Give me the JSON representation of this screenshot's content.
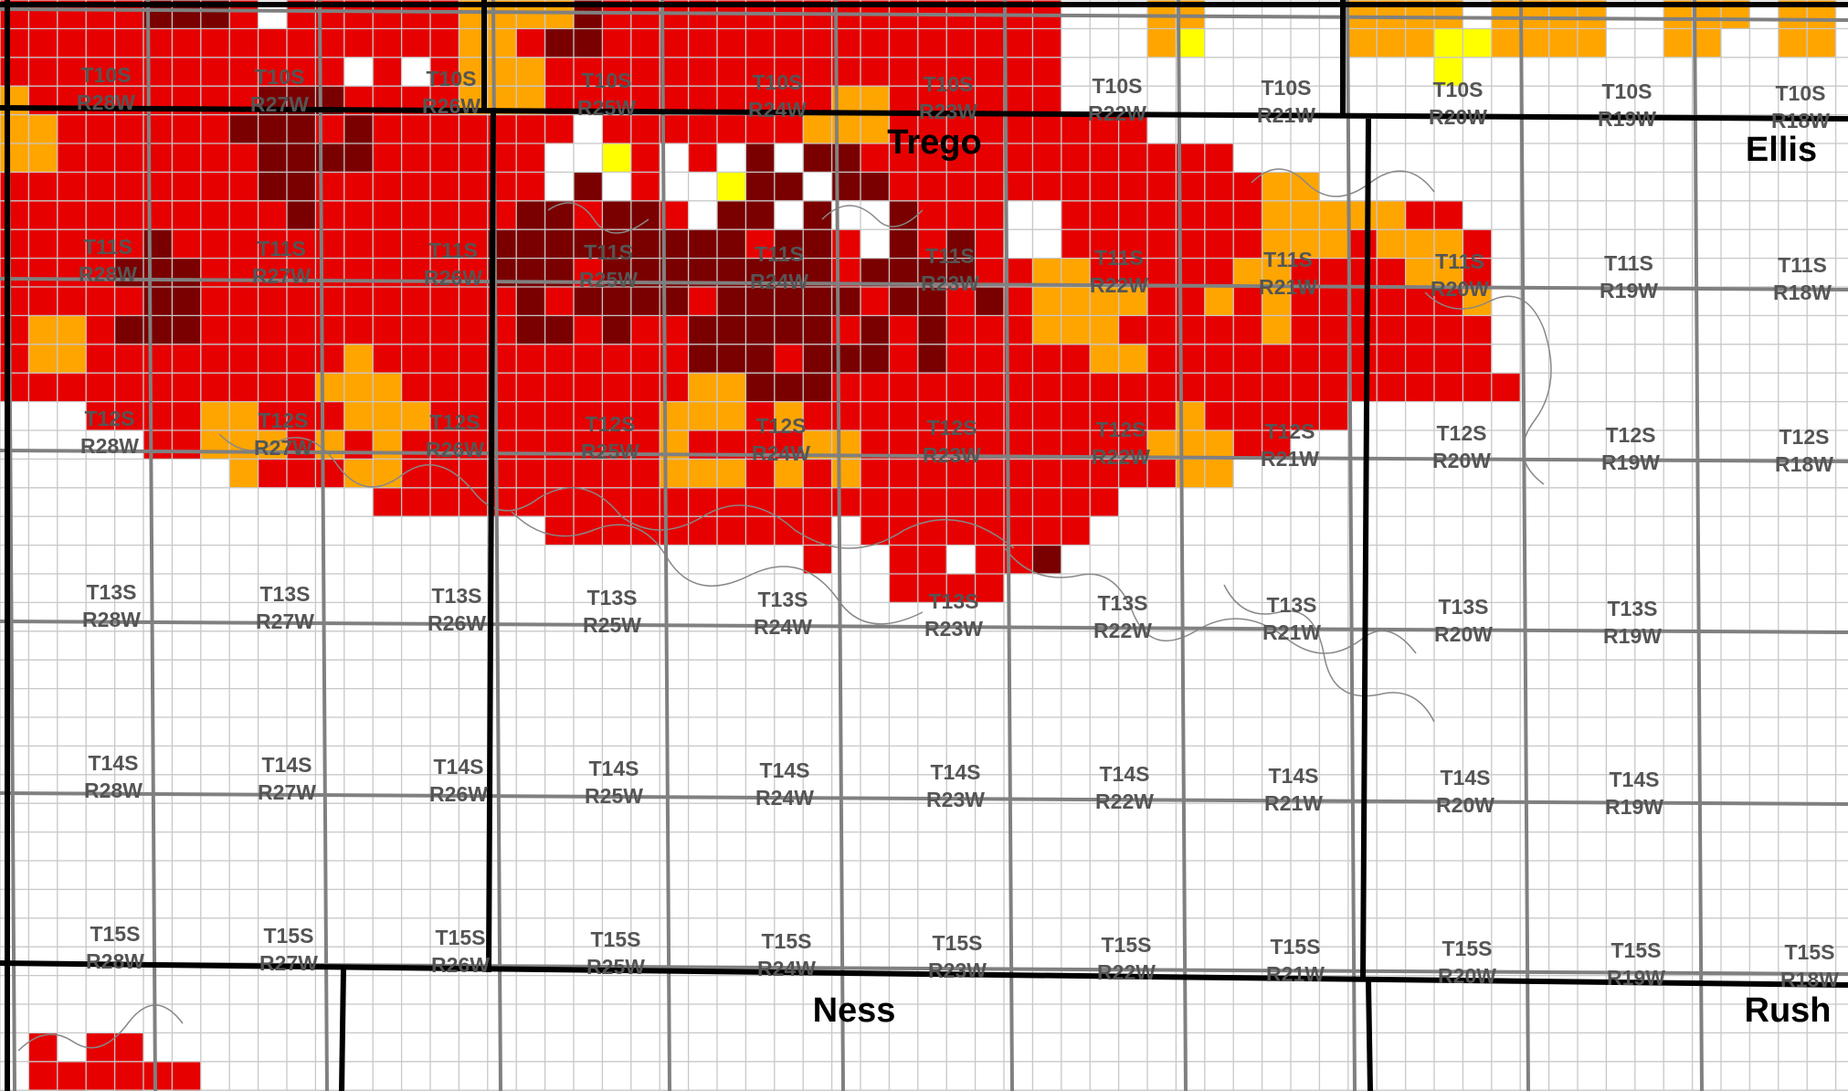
{
  "map": {
    "colors": {
      "background": "#ffffff",
      "dark_red": "#7a0000",
      "red": "#e60000",
      "orange": "#ffa500",
      "yellow": "#ffff00",
      "section_grid": "#c8c8c8",
      "township_grid": "#808080",
      "county_boundary": "#000000",
      "contour": "#888888",
      "label_text": "#555555"
    },
    "counties": [
      "Trego",
      "Ellis",
      "Ness",
      "Rush"
    ],
    "townships": [
      {
        "t": "T10S",
        "r": "R28W"
      },
      {
        "t": "T10S",
        "r": "R27W"
      },
      {
        "t": "T10S",
        "r": "R26W"
      },
      {
        "t": "T10S",
        "r": "R25W"
      },
      {
        "t": "T10S",
        "r": "R24W"
      },
      {
        "t": "T10S",
        "r": "R23W"
      },
      {
        "t": "T10S",
        "r": "R22W"
      },
      {
        "t": "T10S",
        "r": "R21W"
      },
      {
        "t": "T10S",
        "r": "R20W"
      },
      {
        "t": "T10S",
        "r": "R19W"
      },
      {
        "t": "T10S",
        "r": "R18W"
      },
      {
        "t": "T11S",
        "r": "R28W"
      },
      {
        "t": "T11S",
        "r": "R27W"
      },
      {
        "t": "T11S",
        "r": "R26W"
      },
      {
        "t": "T11S",
        "r": "R25W"
      },
      {
        "t": "T11S",
        "r": "R24W"
      },
      {
        "t": "T11S",
        "r": "R23W"
      },
      {
        "t": "T11S",
        "r": "R22W"
      },
      {
        "t": "T11S",
        "r": "R21W"
      },
      {
        "t": "T11S",
        "r": "R20W"
      },
      {
        "t": "T11S",
        "r": "R19W"
      },
      {
        "t": "T11S",
        "r": "R18W"
      },
      {
        "t": "T12S",
        "r": "R28W"
      },
      {
        "t": "T12S",
        "r": "R27W"
      },
      {
        "t": "T12S",
        "r": "R26W"
      },
      {
        "t": "T12S",
        "r": "R25W"
      },
      {
        "t": "T12S",
        "r": "R24W"
      },
      {
        "t": "T12S",
        "r": "R23W"
      },
      {
        "t": "T12S",
        "r": "R22W"
      },
      {
        "t": "T12S",
        "r": "R21W"
      },
      {
        "t": "T12S",
        "r": "R20W"
      },
      {
        "t": "T12S",
        "r": "R19W"
      },
      {
        "t": "T12S",
        "r": "R18W"
      },
      {
        "t": "T13S",
        "r": "R28W"
      },
      {
        "t": "T13S",
        "r": "R27W"
      },
      {
        "t": "T13S",
        "r": "R26W"
      },
      {
        "t": "T13S",
        "r": "R25W"
      },
      {
        "t": "T13S",
        "r": "R24W"
      },
      {
        "t": "T13S",
        "r": "R23W"
      },
      {
        "t": "T13S",
        "r": "R22W"
      },
      {
        "t": "T13S",
        "r": "R21W"
      },
      {
        "t": "T13S",
        "r": "R20W"
      },
      {
        "t": "T13S",
        "r": "R19W"
      },
      {
        "t": "T14S",
        "r": "R28W"
      },
      {
        "t": "T14S",
        "r": "R27W"
      },
      {
        "t": "T14S",
        "r": "R26W"
      },
      {
        "t": "T14S",
        "r": "R25W"
      },
      {
        "t": "T14S",
        "r": "R24W"
      },
      {
        "t": "T14S",
        "r": "R23W"
      },
      {
        "t": "T14S",
        "r": "R22W"
      },
      {
        "t": "T14S",
        "r": "R21W"
      },
      {
        "t": "T14S",
        "r": "R20W"
      },
      {
        "t": "T14S",
        "r": "R19W"
      },
      {
        "t": "T15S",
        "r": "R28W"
      },
      {
        "t": "T15S",
        "r": "R27W"
      },
      {
        "t": "T15S",
        "r": "R26W"
      },
      {
        "t": "T15S",
        "r": "R25W"
      },
      {
        "t": "T15S",
        "r": "R24W"
      },
      {
        "t": "T15S",
        "r": "R23W"
      },
      {
        "t": "T15S",
        "r": "R22W"
      },
      {
        "t": "T15S",
        "r": "R21W"
      },
      {
        "t": "T15S",
        "r": "R20W"
      },
      {
        "t": "T15S",
        "r": "R19W"
      },
      {
        "t": "T15S",
        "r": "R18W"
      }
    ]
  }
}
